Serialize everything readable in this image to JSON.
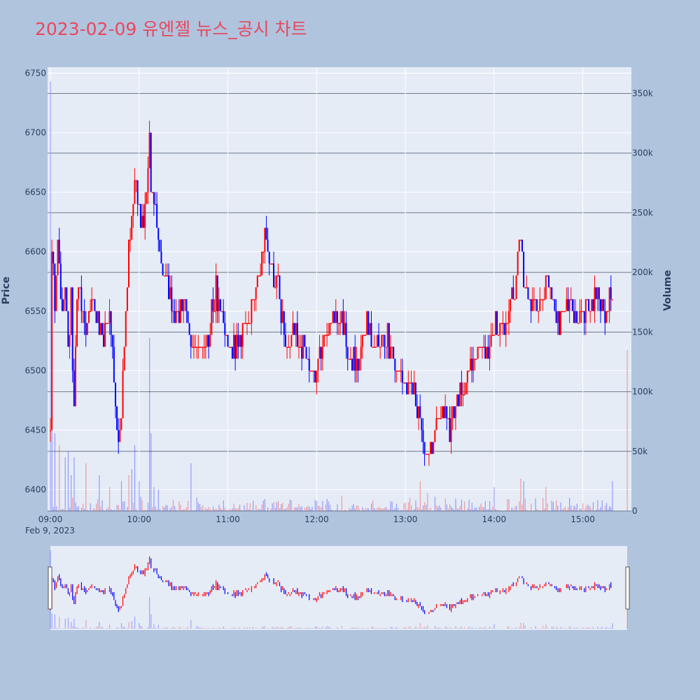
{
  "title": "2023-02-09 유엔젤 뉴스_공시 차트",
  "colors": {
    "background": "#b0c4de",
    "plot_bg": "#e5ecf6",
    "up": "#ff0000",
    "down": "#0000ff",
    "title": "#e8485e"
  },
  "axes": {
    "y_label": "Price",
    "y2_label": "Volume",
    "x_date_label": "Feb 9, 2023"
  },
  "chart_data": {
    "type": "candlestick",
    "title": "2023-02-09 유엔젤 뉴스_공시 차트",
    "ylabel": "Price",
    "y2label": "Volume",
    "ylim": [
      6382,
      6755
    ],
    "y2lim": [
      0,
      372000
    ],
    "price_ticks": [
      6400,
      6450,
      6500,
      6550,
      6600,
      6650,
      6700,
      6750
    ],
    "volume_ticks": [
      0,
      50000,
      100000,
      150000,
      200000,
      250000,
      300000,
      350000
    ],
    "volume_tick_labels": [
      "0",
      "50k",
      "100k",
      "150k",
      "200k",
      "250k",
      "300k",
      "350k"
    ],
    "x_range": [
      "09:00",
      "15:30"
    ],
    "x_ticks": [
      "09:00",
      "10:00",
      "11:00",
      "12:00",
      "13:00",
      "14:00",
      "15:00"
    ],
    "x_start": "09:00",
    "price_path": [
      [
        "09:00",
        6450
      ],
      [
        "09:01",
        6600
      ],
      [
        "09:03",
        6560
      ],
      [
        "09:05",
        6620
      ],
      [
        "09:08",
        6540
      ],
      [
        "09:10",
        6580
      ],
      [
        "09:12",
        6520
      ],
      [
        "09:14",
        6560
      ],
      [
        "09:15",
        6500
      ],
      [
        "09:16",
        6470
      ],
      [
        "09:18",
        6550
      ],
      [
        "09:20",
        6570
      ],
      [
        "09:24",
        6540
      ],
      [
        "09:28",
        6560
      ],
      [
        "09:32",
        6540
      ],
      [
        "09:36",
        6530
      ],
      [
        "09:40",
        6550
      ],
      [
        "09:43",
        6500
      ],
      [
        "09:45",
        6450
      ],
      [
        "09:47",
        6440
      ],
      [
        "09:50",
        6520
      ],
      [
        "09:53",
        6600
      ],
      [
        "09:55",
        6630
      ],
      [
        "09:57",
        6660
      ],
      [
        "10:00",
        6640
      ],
      [
        "10:03",
        6620
      ],
      [
        "10:05",
        6650
      ],
      [
        "10:07",
        6700
      ],
      [
        "10:08",
        6650
      ],
      [
        "10:10",
        6640
      ],
      [
        "10:13",
        6610
      ],
      [
        "10:15",
        6590
      ],
      [
        "10:20",
        6570
      ],
      [
        "10:25",
        6550
      ],
      [
        "10:30",
        6550
      ],
      [
        "10:35",
        6530
      ],
      [
        "10:40",
        6520
      ],
      [
        "10:45",
        6510
      ],
      [
        "10:48",
        6540
      ],
      [
        "10:52",
        6570
      ],
      [
        "10:56",
        6540
      ],
      [
        "11:00",
        6520
      ],
      [
        "11:05",
        6520
      ],
      [
        "11:10",
        6530
      ],
      [
        "11:15",
        6550
      ],
      [
        "11:20",
        6570
      ],
      [
        "11:25",
        6610
      ],
      [
        "11:30",
        6590
      ],
      [
        "11:35",
        6560
      ],
      [
        "11:40",
        6520
      ],
      [
        "11:45",
        6540
      ],
      [
        "11:50",
        6520
      ],
      [
        "11:55",
        6510
      ],
      [
        "12:00",
        6500
      ],
      [
        "12:03",
        6520
      ],
      [
        "12:08",
        6530
      ],
      [
        "12:13",
        6550
      ],
      [
        "12:18",
        6540
      ],
      [
        "12:23",
        6510
      ],
      [
        "12:28",
        6500
      ],
      [
        "12:33",
        6540
      ],
      [
        "12:37",
        6530
      ],
      [
        "12:42",
        6520
      ],
      [
        "12:47",
        6530
      ],
      [
        "12:52",
        6510
      ],
      [
        "12:57",
        6500
      ],
      [
        "13:02",
        6490
      ],
      [
        "13:06",
        6480
      ],
      [
        "13:10",
        6450
      ],
      [
        "13:14",
        6430
      ],
      [
        "13:18",
        6440
      ],
      [
        "13:22",
        6450
      ],
      [
        "13:26",
        6470
      ],
      [
        "13:30",
        6450
      ],
      [
        "13:34",
        6470
      ],
      [
        "13:38",
        6480
      ],
      [
        "13:42",
        6500
      ],
      [
        "13:46",
        6510
      ],
      [
        "13:50",
        6520
      ],
      [
        "13:54",
        6510
      ],
      [
        "13:58",
        6530
      ],
      [
        "14:02",
        6540
      ],
      [
        "14:06",
        6530
      ],
      [
        "14:10",
        6550
      ],
      [
        "14:14",
        6570
      ],
      [
        "14:18",
        6620
      ],
      [
        "14:20",
        6580
      ],
      [
        "14:24",
        6560
      ],
      [
        "14:28",
        6550
      ],
      [
        "14:32",
        6560
      ],
      [
        "14:36",
        6570
      ],
      [
        "14:40",
        6560
      ],
      [
        "14:44",
        6540
      ],
      [
        "14:48",
        6550
      ],
      [
        "14:52",
        6560
      ],
      [
        "14:56",
        6540
      ],
      [
        "15:00",
        6550
      ],
      [
        "15:05",
        6560
      ],
      [
        "15:10",
        6560
      ],
      [
        "15:15",
        6550
      ],
      [
        "15:20",
        6570
      ]
    ],
    "volume_spikes": [
      [
        "09:00",
        360000
      ],
      [
        "09:01",
        70000
      ],
      [
        "09:03",
        65000
      ],
      [
        "09:06",
        55000
      ],
      [
        "09:10",
        45000
      ],
      [
        "09:12",
        50000
      ],
      [
        "09:14",
        30000
      ],
      [
        "09:16",
        45000
      ],
      [
        "09:24",
        40000
      ],
      [
        "09:33",
        30000
      ],
      [
        "09:40",
        20000
      ],
      [
        "09:48",
        25000
      ],
      [
        "09:53",
        30000
      ],
      [
        "09:55",
        35000
      ],
      [
        "09:57",
        55000
      ],
      [
        "10:00",
        25000
      ],
      [
        "10:07",
        145000
      ],
      [
        "10:08",
        65000
      ],
      [
        "10:10",
        20000
      ],
      [
        "10:13",
        18000
      ],
      [
        "10:35",
        40000
      ],
      [
        "11:25",
        10000
      ],
      [
        "12:50",
        8000
      ],
      [
        "13:10",
        25000
      ],
      [
        "13:15",
        15000
      ],
      [
        "13:20",
        12000
      ],
      [
        "14:00",
        20000
      ],
      [
        "14:18",
        27000
      ],
      [
        "14:20",
        25000
      ],
      [
        "14:35",
        20000
      ],
      [
        "15:20",
        25000
      ],
      [
        "15:30",
        135000
      ]
    ],
    "overview_range": [
      "09:00",
      "15:30"
    ]
  }
}
